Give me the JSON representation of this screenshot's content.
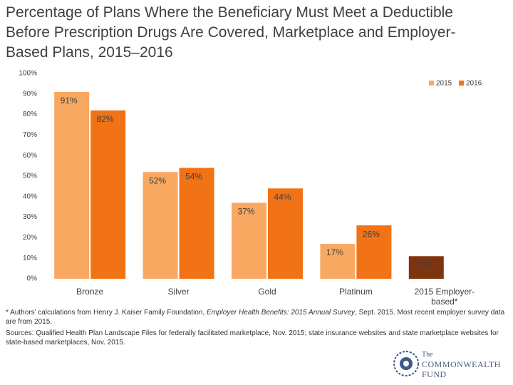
{
  "chart_data": {
    "type": "bar",
    "title": "Percentage of Plans Where the Beneficiary Must Meet a Deductible Before Prescription Drugs Are Covered, Marketplace and Employer-Based Plans, 2015–2016",
    "categories": [
      "Bronze",
      "Silver",
      "Gold",
      "Platinum",
      "2015 Employer-based*"
    ],
    "series": [
      {
        "name": "2015",
        "color": "#f9a862",
        "point_colors": [
          "#f9a862",
          "#f9a862",
          "#f9a862",
          "#f9a862",
          "#7f3410"
        ],
        "values": [
          91,
          52,
          37,
          17,
          11
        ],
        "value_labels": [
          "91%",
          "52%",
          "37%",
          "17%",
          "11%"
        ]
      },
      {
        "name": "2016",
        "color": "#f27216",
        "values": [
          82,
          54,
          44,
          26,
          null
        ],
        "value_labels": [
          "82%",
          "54%",
          "44%",
          "26%",
          null
        ]
      }
    ],
    "ylim": [
      0,
      100
    ],
    "yticks": [
      {
        "value": 0,
        "label": "0%"
      },
      {
        "value": 10,
        "label": "10%"
      },
      {
        "value": 20,
        "label": "20%"
      },
      {
        "value": 30,
        "label": "30%"
      },
      {
        "value": 40,
        "label": "40%"
      },
      {
        "value": 50,
        "label": "50%"
      },
      {
        "value": 60,
        "label": "60%"
      },
      {
        "value": 70,
        "label": "70%"
      },
      {
        "value": 80,
        "label": "80%"
      },
      {
        "value": 90,
        "label": "90%"
      },
      {
        "value": 100,
        "label": "100%"
      }
    ],
    "grid": false,
    "legend": "top-right"
  },
  "notes": {
    "footnote_start": "* Authors’ calculations from Henry J. Kaiser Family Foundation, ",
    "footnote_italic": "Employer Health Benefits: 2015 Annual Survey",
    "footnote_end": ", Sept. 2015. Most recent employer survey data are from 2015.",
    "sources": "Sources: Qualified Health Plan Landscape Files for federally facilitated marketplace, Nov. 2015; state insurance websites and state marketplace websites for state-based marketplaces, Nov. 2015."
  },
  "logo": {
    "line1": "The",
    "line2": "COMMONWEALTH",
    "line3": "FUND"
  }
}
